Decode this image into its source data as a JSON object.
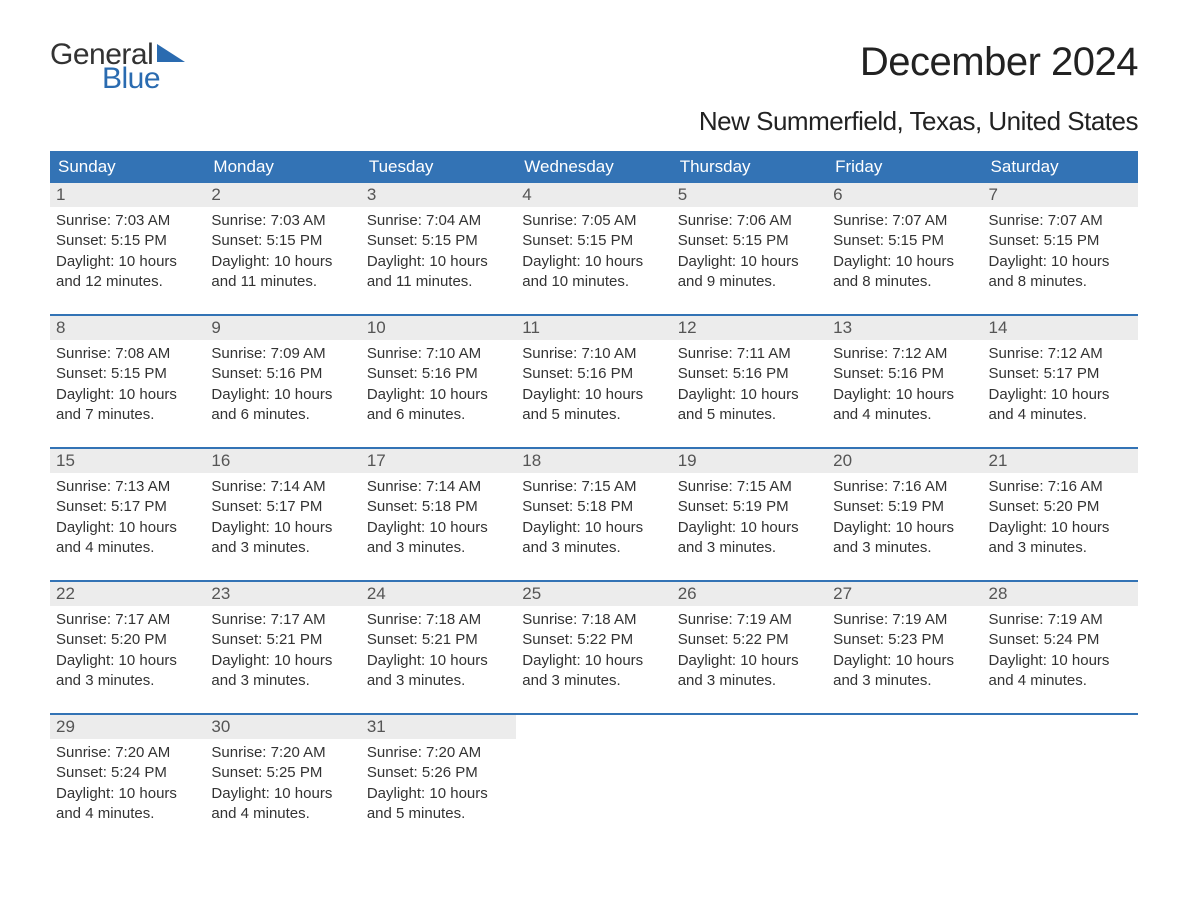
{
  "logo": {
    "word1": "General",
    "word2": "Blue",
    "color_dark": "#333333",
    "color_blue": "#2a6bb0"
  },
  "title": "December 2024",
  "subtitle": "New Summerfield, Texas, United States",
  "colors": {
    "header_bg": "#3373b5",
    "header_text": "#ffffff",
    "daynum_bg": "#ececec",
    "daynum_text": "#555555",
    "body_text": "#333333",
    "week_border": "#3373b5"
  },
  "days_of_week": [
    "Sunday",
    "Monday",
    "Tuesday",
    "Wednesday",
    "Thursday",
    "Friday",
    "Saturday"
  ],
  "weeks": [
    [
      {
        "n": "1",
        "sunrise": "Sunrise: 7:03 AM",
        "sunset": "Sunset: 5:15 PM",
        "daylight": "Daylight: 10 hours and 12 minutes."
      },
      {
        "n": "2",
        "sunrise": "Sunrise: 7:03 AM",
        "sunset": "Sunset: 5:15 PM",
        "daylight": "Daylight: 10 hours and 11 minutes."
      },
      {
        "n": "3",
        "sunrise": "Sunrise: 7:04 AM",
        "sunset": "Sunset: 5:15 PM",
        "daylight": "Daylight: 10 hours and 11 minutes."
      },
      {
        "n": "4",
        "sunrise": "Sunrise: 7:05 AM",
        "sunset": "Sunset: 5:15 PM",
        "daylight": "Daylight: 10 hours and 10 minutes."
      },
      {
        "n": "5",
        "sunrise": "Sunrise: 7:06 AM",
        "sunset": "Sunset: 5:15 PM",
        "daylight": "Daylight: 10 hours and 9 minutes."
      },
      {
        "n": "6",
        "sunrise": "Sunrise: 7:07 AM",
        "sunset": "Sunset: 5:15 PM",
        "daylight": "Daylight: 10 hours and 8 minutes."
      },
      {
        "n": "7",
        "sunrise": "Sunrise: 7:07 AM",
        "sunset": "Sunset: 5:15 PM",
        "daylight": "Daylight: 10 hours and 8 minutes."
      }
    ],
    [
      {
        "n": "8",
        "sunrise": "Sunrise: 7:08 AM",
        "sunset": "Sunset: 5:15 PM",
        "daylight": "Daylight: 10 hours and 7 minutes."
      },
      {
        "n": "9",
        "sunrise": "Sunrise: 7:09 AM",
        "sunset": "Sunset: 5:16 PM",
        "daylight": "Daylight: 10 hours and 6 minutes."
      },
      {
        "n": "10",
        "sunrise": "Sunrise: 7:10 AM",
        "sunset": "Sunset: 5:16 PM",
        "daylight": "Daylight: 10 hours and 6 minutes."
      },
      {
        "n": "11",
        "sunrise": "Sunrise: 7:10 AM",
        "sunset": "Sunset: 5:16 PM",
        "daylight": "Daylight: 10 hours and 5 minutes."
      },
      {
        "n": "12",
        "sunrise": "Sunrise: 7:11 AM",
        "sunset": "Sunset: 5:16 PM",
        "daylight": "Daylight: 10 hours and 5 minutes."
      },
      {
        "n": "13",
        "sunrise": "Sunrise: 7:12 AM",
        "sunset": "Sunset: 5:16 PM",
        "daylight": "Daylight: 10 hours and 4 minutes."
      },
      {
        "n": "14",
        "sunrise": "Sunrise: 7:12 AM",
        "sunset": "Sunset: 5:17 PM",
        "daylight": "Daylight: 10 hours and 4 minutes."
      }
    ],
    [
      {
        "n": "15",
        "sunrise": "Sunrise: 7:13 AM",
        "sunset": "Sunset: 5:17 PM",
        "daylight": "Daylight: 10 hours and 4 minutes."
      },
      {
        "n": "16",
        "sunrise": "Sunrise: 7:14 AM",
        "sunset": "Sunset: 5:17 PM",
        "daylight": "Daylight: 10 hours and 3 minutes."
      },
      {
        "n": "17",
        "sunrise": "Sunrise: 7:14 AM",
        "sunset": "Sunset: 5:18 PM",
        "daylight": "Daylight: 10 hours and 3 minutes."
      },
      {
        "n": "18",
        "sunrise": "Sunrise: 7:15 AM",
        "sunset": "Sunset: 5:18 PM",
        "daylight": "Daylight: 10 hours and 3 minutes."
      },
      {
        "n": "19",
        "sunrise": "Sunrise: 7:15 AM",
        "sunset": "Sunset: 5:19 PM",
        "daylight": "Daylight: 10 hours and 3 minutes."
      },
      {
        "n": "20",
        "sunrise": "Sunrise: 7:16 AM",
        "sunset": "Sunset: 5:19 PM",
        "daylight": "Daylight: 10 hours and 3 minutes."
      },
      {
        "n": "21",
        "sunrise": "Sunrise: 7:16 AM",
        "sunset": "Sunset: 5:20 PM",
        "daylight": "Daylight: 10 hours and 3 minutes."
      }
    ],
    [
      {
        "n": "22",
        "sunrise": "Sunrise: 7:17 AM",
        "sunset": "Sunset: 5:20 PM",
        "daylight": "Daylight: 10 hours and 3 minutes."
      },
      {
        "n": "23",
        "sunrise": "Sunrise: 7:17 AM",
        "sunset": "Sunset: 5:21 PM",
        "daylight": "Daylight: 10 hours and 3 minutes."
      },
      {
        "n": "24",
        "sunrise": "Sunrise: 7:18 AM",
        "sunset": "Sunset: 5:21 PM",
        "daylight": "Daylight: 10 hours and 3 minutes."
      },
      {
        "n": "25",
        "sunrise": "Sunrise: 7:18 AM",
        "sunset": "Sunset: 5:22 PM",
        "daylight": "Daylight: 10 hours and 3 minutes."
      },
      {
        "n": "26",
        "sunrise": "Sunrise: 7:19 AM",
        "sunset": "Sunset: 5:22 PM",
        "daylight": "Daylight: 10 hours and 3 minutes."
      },
      {
        "n": "27",
        "sunrise": "Sunrise: 7:19 AM",
        "sunset": "Sunset: 5:23 PM",
        "daylight": "Daylight: 10 hours and 3 minutes."
      },
      {
        "n": "28",
        "sunrise": "Sunrise: 7:19 AM",
        "sunset": "Sunset: 5:24 PM",
        "daylight": "Daylight: 10 hours and 4 minutes."
      }
    ],
    [
      {
        "n": "29",
        "sunrise": "Sunrise: 7:20 AM",
        "sunset": "Sunset: 5:24 PM",
        "daylight": "Daylight: 10 hours and 4 minutes."
      },
      {
        "n": "30",
        "sunrise": "Sunrise: 7:20 AM",
        "sunset": "Sunset: 5:25 PM",
        "daylight": "Daylight: 10 hours and 4 minutes."
      },
      {
        "n": "31",
        "sunrise": "Sunrise: 7:20 AM",
        "sunset": "Sunset: 5:26 PM",
        "daylight": "Daylight: 10 hours and 5 minutes."
      },
      null,
      null,
      null,
      null
    ]
  ]
}
